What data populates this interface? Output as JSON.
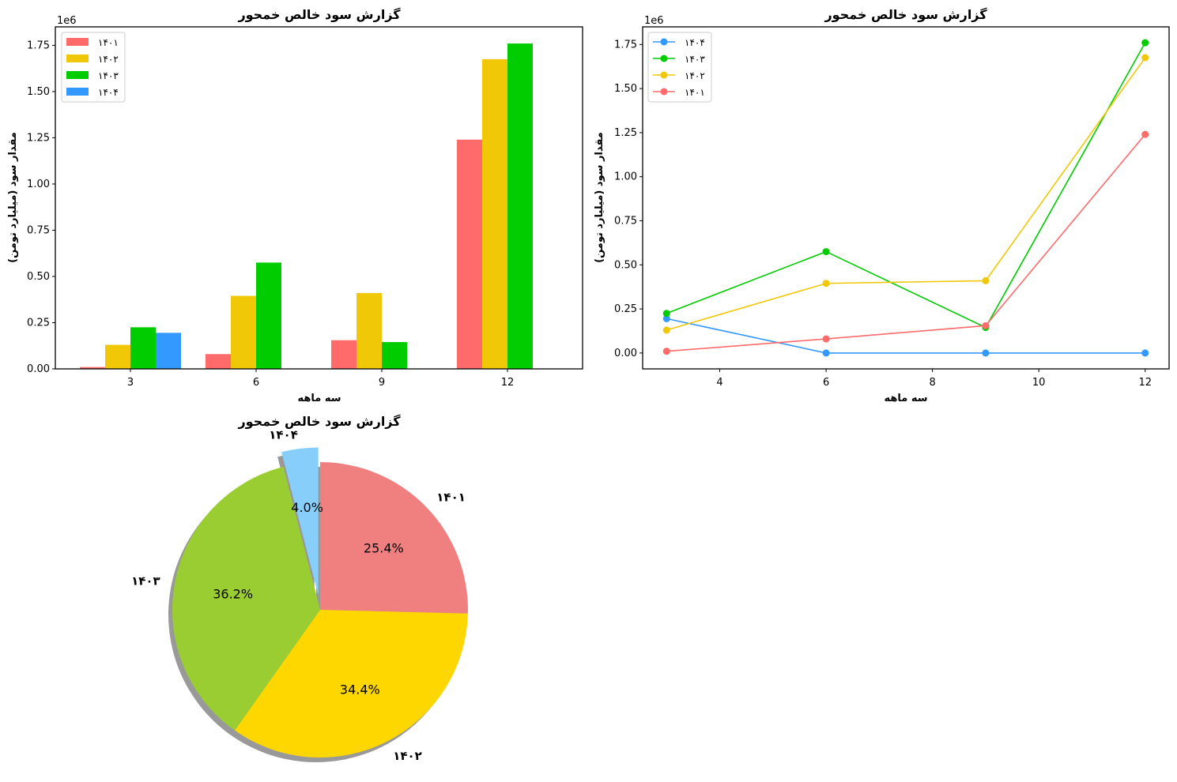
{
  "colors": {
    "bar": [
      "#ff6b6b",
      "#f0c808",
      "#00cc00",
      "#3399ff"
    ],
    "pie": [
      "#f08080",
      "#ffd700",
      "#9acd32",
      "#87cefa"
    ]
  },
  "chart_data": [
    {
      "type": "bar",
      "title": "گزارش سود خالص خمحور",
      "xlabel": "سه ماهه",
      "ylabel": "مقدار سود (میلیارد تومن)",
      "y_multiplier_label": "1e6",
      "categories": [
        "3",
        "6",
        "9",
        "12"
      ],
      "ylim": [
        0,
        1850000
      ],
      "yticks": [
        "0.00",
        "0.25",
        "0.50",
        "0.75",
        "1.00",
        "1.25",
        "1.50",
        "1.75"
      ],
      "legend_position": "upper-left",
      "series": [
        {
          "name": "۱۴۰۱",
          "values": [
            10000,
            80000,
            155000,
            1240000
          ]
        },
        {
          "name": "۱۴۰۲",
          "values": [
            130000,
            395000,
            410000,
            1675000
          ]
        },
        {
          "name": "۱۴۰۳",
          "values": [
            225000,
            575000,
            145000,
            1760000
          ]
        },
        {
          "name": "۱۴۰۴",
          "values": [
            195000,
            0,
            0,
            0
          ]
        }
      ]
    },
    {
      "type": "line",
      "title": "گزارش سود خالص خمحور",
      "xlabel": "سه ماهه",
      "ylabel": "مقدار سود (میلیارد تومن)",
      "y_multiplier_label": "1e6",
      "x": [
        3,
        6,
        9,
        12
      ],
      "xlim": [
        2.55,
        12.45
      ],
      "xticks": [
        "4",
        "6",
        "8",
        "10",
        "12"
      ],
      "ylim": [
        -90000,
        1850000
      ],
      "yticks": [
        "0.00",
        "0.25",
        "0.50",
        "0.75",
        "1.00",
        "1.25",
        "1.50",
        "1.75"
      ],
      "legend_position": "upper-left",
      "series": [
        {
          "name": "۱۴۰۴",
          "color": "#3399ff",
          "values": [
            195000,
            0,
            0,
            0
          ]
        },
        {
          "name": "۱۴۰۳",
          "color": "#00cc00",
          "values": [
            225000,
            575000,
            145000,
            1760000
          ]
        },
        {
          "name": "۱۴۰۲",
          "color": "#f0c808",
          "values": [
            130000,
            395000,
            410000,
            1675000
          ]
        },
        {
          "name": "۱۴۰۱",
          "color": "#ff6b6b",
          "values": [
            10000,
            80000,
            155000,
            1240000
          ]
        }
      ]
    },
    {
      "type": "pie",
      "title": "گزارش سود خالص خمحور",
      "slices": [
        {
          "label": "۱۴۰۱",
          "pct_label": "25.4%",
          "value": 25.4
        },
        {
          "label": "۱۴۰۲",
          "pct_label": "34.4%",
          "value": 34.4
        },
        {
          "label": "۱۴۰۳",
          "pct_label": "36.2%",
          "value": 36.2
        },
        {
          "label": "۱۴۰۴",
          "pct_label": "4.0%",
          "value": 4.0,
          "exploded": true
        }
      ],
      "shadow": true
    }
  ]
}
